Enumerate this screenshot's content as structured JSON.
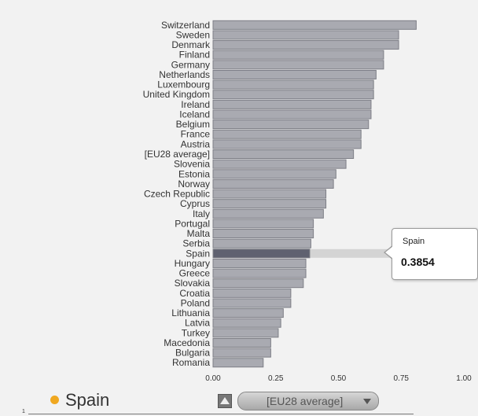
{
  "chart_data": {
    "type": "bar",
    "orientation": "horizontal",
    "categories": [
      "Switzerland",
      "Sweden",
      "Denmark",
      "Finland",
      "Germany",
      "Netherlands",
      "Luxembourg",
      "United Kingdom",
      "Ireland",
      "Iceland",
      "Belgium",
      "France",
      "Austria",
      "[EU28 average]",
      "Slovenia",
      "Estonia",
      "Norway",
      "Czech Republic",
      "Cyprus",
      "Italy",
      "Portugal",
      "Malta",
      "Serbia",
      "Spain",
      "Hungary",
      "Greece",
      "Slovakia",
      "Croatia",
      "Poland",
      "Lithuania",
      "Latvia",
      "Turkey",
      "Macedonia",
      "Bulgaria",
      "Romania"
    ],
    "values": [
      0.81,
      0.74,
      0.74,
      0.68,
      0.68,
      0.65,
      0.64,
      0.64,
      0.63,
      0.63,
      0.62,
      0.59,
      0.59,
      0.56,
      0.53,
      0.49,
      0.48,
      0.45,
      0.45,
      0.44,
      0.4,
      0.4,
      0.39,
      0.3854,
      0.37,
      0.37,
      0.36,
      0.31,
      0.31,
      0.28,
      0.27,
      0.26,
      0.23,
      0.23,
      0.2
    ],
    "xlim": [
      0,
      1
    ],
    "xticks": [
      "0.00",
      "0.25",
      "0.50",
      "0.75",
      "1.00"
    ],
    "highlighted": "Spain",
    "colors": {
      "bar": "#a9aab1",
      "bar_edge": "#7d7e86",
      "highlight": "#5f6170",
      "band": "#d4d4d4"
    }
  },
  "tooltip": {
    "name": "Spain",
    "value": "0.3854"
  },
  "legend": {
    "label": "Spain",
    "dot_color": "#f0a820"
  },
  "controls": {
    "compare_selected": "[EU28 average]"
  },
  "axis_note": "1"
}
